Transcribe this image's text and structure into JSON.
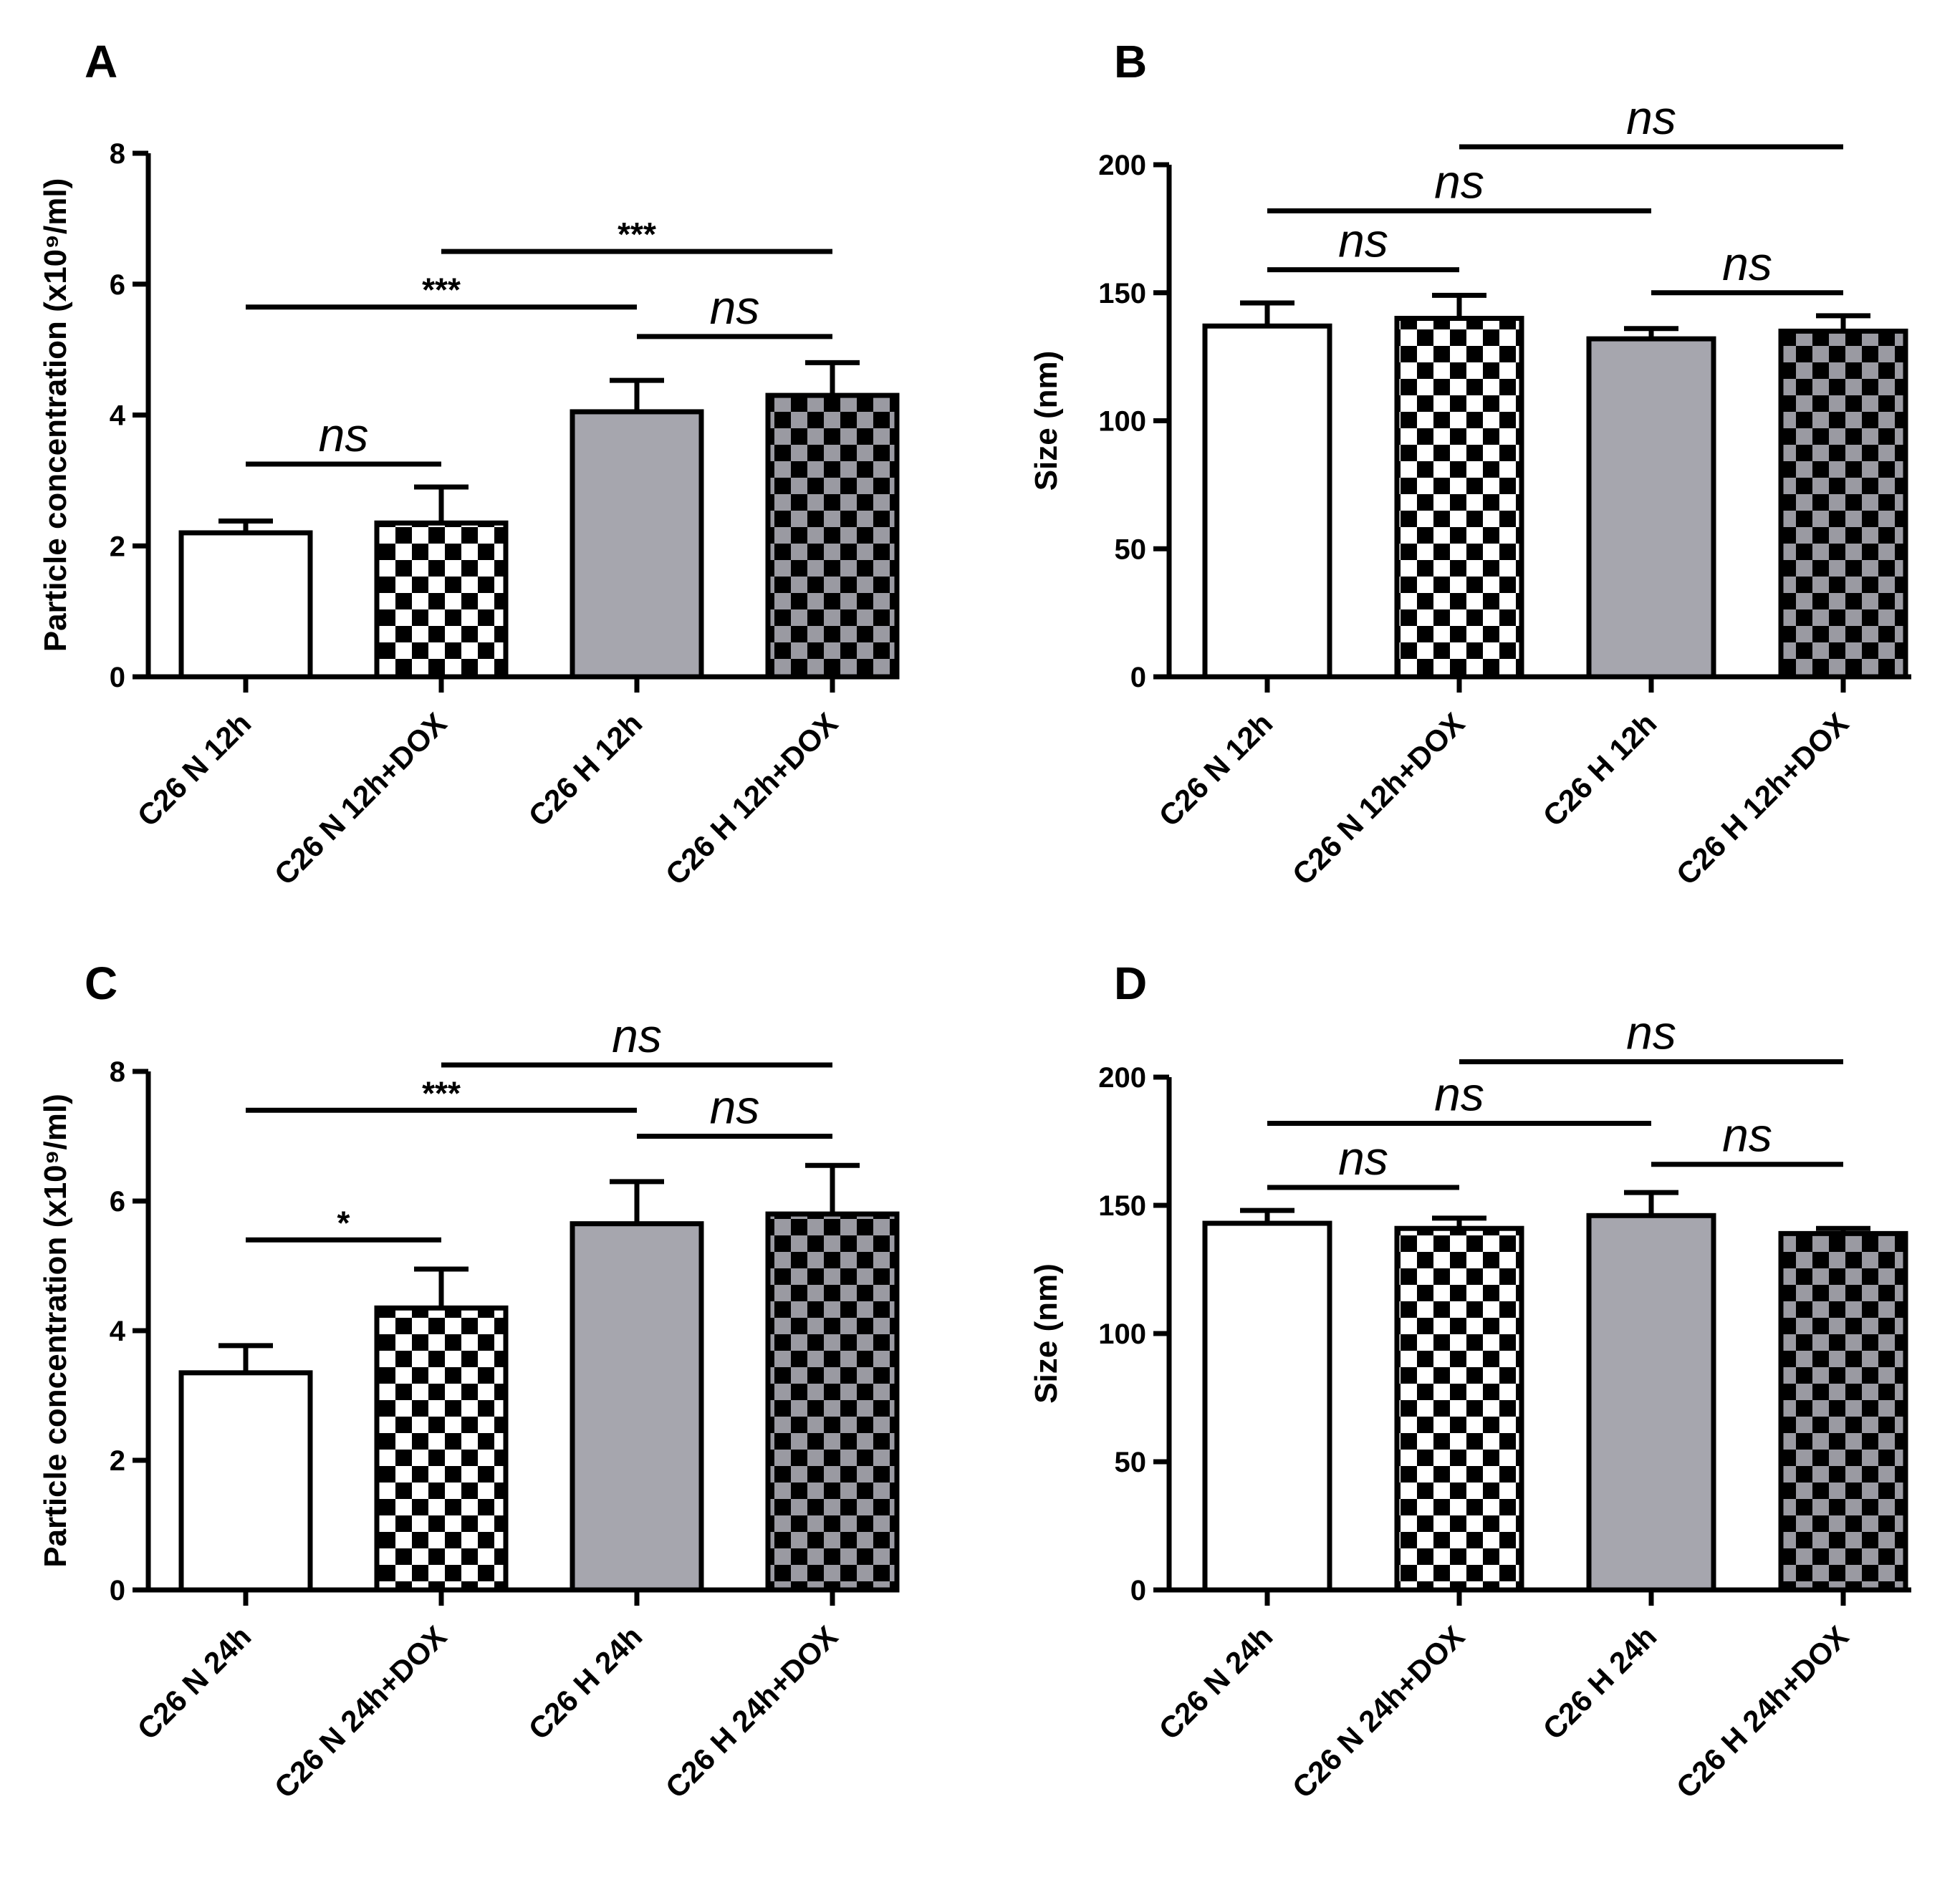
{
  "colors": {
    "ink": "#000000",
    "white_fill": "#ffffff",
    "grey_fill": "#a6a6ae",
    "checker_dark": "#000000",
    "checker_light_white": "#ffffff",
    "checker_light_grey": "#9a9aa2"
  },
  "chart_data": [
    {
      "panel": "A",
      "type": "bar",
      "ylabel": "Particle concentration (x10⁹/ml)",
      "ylim": [
        0,
        8
      ],
      "yticks": [
        0,
        2,
        4,
        6,
        8
      ],
      "categories": [
        "C26 N 12h",
        "C26 N 12h+DOX",
        "C26 H 12h",
        "C26 H 12h+DOX"
      ],
      "fills": [
        "white",
        "checker-white",
        "grey",
        "checker-grey"
      ],
      "values": [
        2.2,
        2.35,
        4.05,
        4.3
      ],
      "errors": [
        0.18,
        0.55,
        0.48,
        0.5
      ],
      "significance": [
        {
          "from": 0,
          "to": 1,
          "label": "ns",
          "y": 3.25
        },
        {
          "from": 0,
          "to": 2,
          "label": "***",
          "y": 5.65
        },
        {
          "from": 1,
          "to": 3,
          "label": "***",
          "y": 6.5
        },
        {
          "from": 2,
          "to": 3,
          "label": "ns",
          "y": 5.2
        }
      ]
    },
    {
      "panel": "B",
      "type": "bar",
      "ylabel": "Size (nm)",
      "ylim": [
        0,
        200
      ],
      "yticks": [
        0,
        50,
        100,
        150,
        200
      ],
      "categories": [
        "C26 N 12h",
        "C26 N 12h+DOX",
        "C26 H 12h",
        "C26 H 12h+DOX"
      ],
      "fills": [
        "white",
        "checker-white",
        "grey",
        "checker-grey"
      ],
      "values": [
        137,
        140,
        132,
        135
      ],
      "errors": [
        9,
        9,
        4,
        6
      ],
      "significance": [
        {
          "from": 0,
          "to": 1,
          "label": "ns",
          "y": 159
        },
        {
          "from": 0,
          "to": 2,
          "label": "ns",
          "y": 182
        },
        {
          "from": 1,
          "to": 3,
          "label": "ns",
          "y": 207
        },
        {
          "from": 2,
          "to": 3,
          "label": "ns",
          "y": 150
        }
      ]
    },
    {
      "panel": "C",
      "type": "bar",
      "ylabel": "Particle concentration (x10⁹/ml)",
      "ylim": [
        0,
        8
      ],
      "yticks": [
        0,
        2,
        4,
        6,
        8
      ],
      "categories": [
        "C26 N 24h",
        "C26 N 24h+DOX",
        "C26 H 24h",
        "C26 H 24h+DOX"
      ],
      "fills": [
        "white",
        "checker-white",
        "grey",
        "checker-grey"
      ],
      "values": [
        3.35,
        4.35,
        5.65,
        5.8
      ],
      "errors": [
        0.42,
        0.6,
        0.65,
        0.75
      ],
      "significance": [
        {
          "from": 0,
          "to": 1,
          "label": "*",
          "y": 5.4
        },
        {
          "from": 0,
          "to": 2,
          "label": "***",
          "y": 7.4
        },
        {
          "from": 1,
          "to": 3,
          "label": "ns",
          "y": 8.1
        },
        {
          "from": 2,
          "to": 3,
          "label": "ns",
          "y": 7.0
        }
      ]
    },
    {
      "panel": "D",
      "type": "bar",
      "ylabel": "Size (nm)",
      "ylim": [
        0,
        200
      ],
      "yticks": [
        0,
        50,
        100,
        150,
        200
      ],
      "categories": [
        "C26 N 24h",
        "C26 N 24h+DOX",
        "C26 H 24h",
        "C26 H 24h+DOX"
      ],
      "fills": [
        "white",
        "checker-white",
        "grey",
        "checker-grey"
      ],
      "values": [
        143,
        141,
        146,
        139
      ],
      "errors": [
        5,
        4,
        9,
        2
      ],
      "significance": [
        {
          "from": 0,
          "to": 1,
          "label": "ns",
          "y": 157
        },
        {
          "from": 0,
          "to": 2,
          "label": "ns",
          "y": 182
        },
        {
          "from": 1,
          "to": 3,
          "label": "ns",
          "y": 206
        },
        {
          "from": 2,
          "to": 3,
          "label": "ns",
          "y": 166
        }
      ]
    }
  ]
}
